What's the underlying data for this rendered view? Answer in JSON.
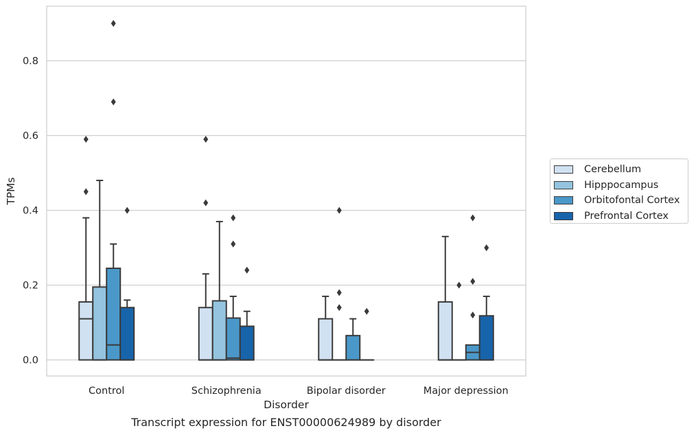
{
  "caption": "Transcript expression for ENST00000624989 by disorder",
  "chart_data": {
    "type": "box",
    "xlabel": "Disorder",
    "ylabel": "TPMs",
    "ylim": [
      -0.043,
      0.946
    ],
    "yticks": [
      0.0,
      0.2,
      0.4,
      0.6,
      0.8
    ],
    "ytick_labels": [
      "0.0",
      "0.2",
      "0.4",
      "0.6",
      "0.8"
    ],
    "grid": "horizontal",
    "legend_position": "right",
    "categories": [
      "Control",
      "Schizophrenia",
      "Bipolar disorder",
      "Major depression"
    ],
    "series": [
      {
        "name": "Cerebellum",
        "color": "#d0e1f2",
        "boxes": [
          {
            "q1": 0.0,
            "median": 0.11,
            "q3": 0.155,
            "whisker_low": 0.0,
            "whisker_high": 0.38,
            "outliers": [
              0.45,
              0.59
            ]
          },
          {
            "q1": 0.0,
            "median": 0.0,
            "q3": 0.14,
            "whisker_low": 0.0,
            "whisker_high": 0.23,
            "outliers": [
              0.42,
              0.59
            ]
          },
          {
            "q1": 0.0,
            "median": 0.0,
            "q3": 0.11,
            "whisker_low": 0.0,
            "whisker_high": 0.17,
            "outliers": []
          },
          {
            "q1": 0.0,
            "median": 0.0,
            "q3": 0.155,
            "whisker_low": 0.0,
            "whisker_high": 0.33,
            "outliers": []
          }
        ]
      },
      {
        "name": "Hipppocampus",
        "color": "#94c4df",
        "boxes": [
          {
            "q1": 0.0,
            "median": 0.0,
            "q3": 0.195,
            "whisker_low": 0.0,
            "whisker_high": 0.48,
            "outliers": []
          },
          {
            "q1": 0.0,
            "median": 0.0,
            "q3": 0.158,
            "whisker_low": 0.0,
            "whisker_high": 0.37,
            "outliers": []
          },
          {
            "q1": 0.0,
            "median": 0.0,
            "q3": 0.0,
            "whisker_low": 0.0,
            "whisker_high": 0.0,
            "outliers": [
              0.14,
              0.18,
              0.4
            ]
          },
          {
            "q1": 0.0,
            "median": 0.0,
            "q3": 0.0,
            "whisker_low": 0.0,
            "whisker_high": 0.0,
            "outliers": [
              0.2
            ]
          }
        ]
      },
      {
        "name": "Orbitofontal Cortex",
        "color": "#4a98c9",
        "boxes": [
          {
            "q1": 0.0,
            "median": 0.04,
            "q3": 0.245,
            "whisker_low": 0.0,
            "whisker_high": 0.31,
            "outliers": [
              0.69,
              0.9
            ]
          },
          {
            "q1": 0.0,
            "median": 0.005,
            "q3": 0.112,
            "whisker_low": 0.0,
            "whisker_high": 0.17,
            "outliers": [
              0.31,
              0.38
            ]
          },
          {
            "q1": 0.0,
            "median": 0.0,
            "q3": 0.065,
            "whisker_low": 0.0,
            "whisker_high": 0.11,
            "outliers": []
          },
          {
            "q1": 0.0,
            "median": 0.02,
            "q3": 0.04,
            "whisker_low": 0.0,
            "whisker_high": 0.04,
            "outliers": [
              0.12,
              0.21,
              0.38
            ]
          }
        ]
      },
      {
        "name": "Prefrontal Cortex",
        "color": "#1764ab",
        "boxes": [
          {
            "q1": 0.0,
            "median": 0.0,
            "q3": 0.14,
            "whisker_low": 0.0,
            "whisker_high": 0.16,
            "outliers": [
              0.4
            ]
          },
          {
            "q1": 0.0,
            "median": 0.0,
            "q3": 0.09,
            "whisker_low": 0.0,
            "whisker_high": 0.13,
            "outliers": [
              0.24
            ]
          },
          {
            "q1": 0.0,
            "median": 0.0,
            "q3": 0.0,
            "whisker_low": 0.0,
            "whisker_high": 0.0,
            "outliers": [
              0.13
            ]
          },
          {
            "q1": 0.0,
            "median": 0.0,
            "q3": 0.118,
            "whisker_low": 0.0,
            "whisker_high": 0.17,
            "outliers": [
              0.3
            ]
          }
        ]
      }
    ]
  }
}
